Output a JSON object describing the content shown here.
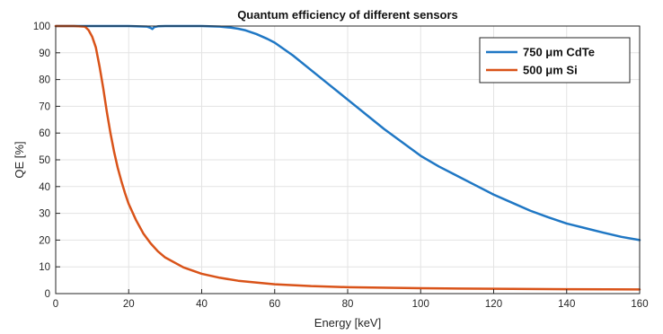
{
  "chart_data": {
    "type": "line",
    "title": "Quantum efficiency of different sensors",
    "xlabel": "Energy [keV]",
    "ylabel": "QE [%]",
    "xlim": [
      0,
      160
    ],
    "ylim": [
      0,
      100
    ],
    "xticks": [
      "0",
      "20",
      "40",
      "60",
      "80",
      "100",
      "120",
      "140",
      "160"
    ],
    "yticks": [
      "0",
      "10",
      "20",
      "30",
      "40",
      "50",
      "60",
      "70",
      "80",
      "90",
      "100"
    ],
    "grid": true,
    "legend_position": "top-right",
    "series": [
      {
        "name": "750 μm CdTe",
        "color": "#1f77c4",
        "x": [
          0,
          5,
          10,
          15,
          20,
          25,
          26,
          26.5,
          27,
          28,
          30,
          35,
          40,
          45,
          48,
          50,
          52,
          55,
          58,
          60,
          65,
          70,
          75,
          80,
          85,
          90,
          95,
          100,
          105,
          110,
          115,
          120,
          125,
          130,
          135,
          140,
          145,
          150,
          155,
          160
        ],
        "y": [
          100,
          100,
          100,
          100,
          100,
          99.8,
          99.3,
          98.9,
          99.6,
          99.9,
          100,
          100,
          100,
          99.8,
          99.4,
          99,
          98.4,
          97,
          95.2,
          93.8,
          89,
          83.5,
          78,
          72.5,
          67,
          61.5,
          56.5,
          51.5,
          47.5,
          44,
          40.5,
          37,
          34,
          31,
          28.5,
          26.2,
          24.5,
          22.8,
          21.2,
          20
        ]
      },
      {
        "name": "500 μm Si",
        "color": "#d95319",
        "x": [
          0,
          5,
          8,
          9,
          10,
          11,
          12,
          13,
          14,
          15,
          16,
          17,
          18,
          19,
          20,
          22,
          24,
          26,
          28,
          30,
          35,
          40,
          45,
          50,
          60,
          70,
          80,
          100,
          120,
          140,
          160
        ],
        "y": [
          100,
          100,
          99.8,
          98.5,
          96,
          92,
          85,
          77,
          68,
          60,
          53,
          47,
          42,
          37.5,
          33.5,
          27.5,
          22.5,
          18.8,
          15.8,
          13.5,
          9.8,
          7.4,
          5.9,
          4.8,
          3.5,
          2.8,
          2.4,
          2,
          1.8,
          1.65,
          1.55
        ]
      }
    ]
  }
}
